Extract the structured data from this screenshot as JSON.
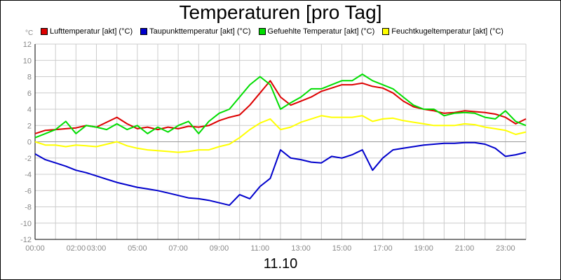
{
  "chart_data": {
    "type": "line",
    "title": "Temperaturen [pro Tag]",
    "date_label": "11.10",
    "y_unit": "°C",
    "ylim": [
      -12,
      12
    ],
    "y_ticks": [
      "12",
      "10",
      "8",
      "6",
      "4",
      "2",
      "0",
      "-2",
      "-4",
      "-6",
      "-8",
      "-10",
      "-12"
    ],
    "xlim": [
      0,
      24
    ],
    "x_ticks": [
      {
        "label": "00:00",
        "hour": 0
      },
      {
        "label": "02:00",
        "hour": 2
      },
      {
        "label": "03:00",
        "hour": 3
      },
      {
        "label": "05:00",
        "hour": 5
      },
      {
        "label": "07:00",
        "hour": 7
      },
      {
        "label": "09:00",
        "hour": 9
      },
      {
        "label": "11:00",
        "hour": 11
      },
      {
        "label": "13:00",
        "hour": 13
      },
      {
        "label": "15:00",
        "hour": 15
      },
      {
        "label": "17:00",
        "hour": 17
      },
      {
        "label": "19:00",
        "hour": 19
      },
      {
        "label": "21:00",
        "hour": 21
      },
      {
        "label": "23:00",
        "hour": 23
      }
    ],
    "grid": true,
    "legend_position": "top",
    "series": [
      {
        "name": "Lufttemperatur [akt] (°C)",
        "color": "#dd0000",
        "x": [
          0,
          0.5,
          1,
          1.5,
          2,
          2.5,
          3,
          3.5,
          4,
          4.5,
          5,
          5.5,
          6,
          6.5,
          7,
          7.5,
          8,
          8.5,
          9,
          9.5,
          10,
          10.5,
          11,
          11.5,
          12,
          12.5,
          13,
          13.5,
          14,
          14.5,
          15,
          15.5,
          16,
          16.5,
          17,
          17.5,
          18,
          18.5,
          19,
          19.5,
          20,
          20.5,
          21,
          21.5,
          22,
          22.5,
          23,
          23.5,
          24
        ],
        "values": [
          1.0,
          1.4,
          1.5,
          1.6,
          1.7,
          2.0,
          1.8,
          2.4,
          3.0,
          2.2,
          1.6,
          1.8,
          1.5,
          1.8,
          1.6,
          1.9,
          1.8,
          2.0,
          2.6,
          3.0,
          3.3,
          4.5,
          6.0,
          7.5,
          5.5,
          4.5,
          5.0,
          5.5,
          6.2,
          6.6,
          7.0,
          7.0,
          7.2,
          6.8,
          6.6,
          6.0,
          5.0,
          4.3,
          4.0,
          3.8,
          3.5,
          3.6,
          3.8,
          3.7,
          3.6,
          3.4,
          3.0,
          2.2,
          2.8
        ]
      },
      {
        "name": "Taupunkttemperatur [akt] (°C)",
        "color": "#0000cc",
        "x": [
          0,
          0.5,
          1,
          1.5,
          2,
          2.5,
          3,
          3.5,
          4,
          4.5,
          5,
          5.5,
          6,
          6.5,
          7,
          7.5,
          8,
          8.5,
          9,
          9.5,
          10,
          10.5,
          11,
          11.5,
          12,
          12.5,
          13,
          13.5,
          14,
          14.5,
          15,
          15.5,
          16,
          16.5,
          17,
          17.5,
          18,
          18.5,
          19,
          19.5,
          20,
          20.5,
          21,
          21.5,
          22,
          22.5,
          23,
          23.5,
          24
        ],
        "values": [
          -1.5,
          -2.2,
          -2.6,
          -3.0,
          -3.5,
          -3.8,
          -4.2,
          -4.6,
          -5.0,
          -5.3,
          -5.6,
          -5.8,
          -6.0,
          -6.3,
          -6.6,
          -6.9,
          -7.0,
          -7.2,
          -7.5,
          -7.8,
          -6.5,
          -7.0,
          -5.5,
          -4.5,
          -1.0,
          -2.0,
          -2.2,
          -2.5,
          -2.6,
          -1.8,
          -2.0,
          -1.6,
          -1.0,
          -3.5,
          -2.0,
          -1.0,
          -0.8,
          -0.6,
          -0.4,
          -0.3,
          -0.2,
          -0.2,
          -0.1,
          -0.1,
          -0.3,
          -0.8,
          -1.8,
          -1.6,
          -1.3
        ]
      },
      {
        "name": "Gefuehlte Temperatur [akt] (°C)",
        "color": "#00dd00",
        "x": [
          0,
          0.5,
          1,
          1.5,
          2,
          2.5,
          3,
          3.5,
          4,
          4.5,
          5,
          5.5,
          6,
          6.5,
          7,
          7.5,
          8,
          8.5,
          9,
          9.5,
          10,
          10.5,
          11,
          11.5,
          12,
          12.5,
          13,
          13.5,
          14,
          14.5,
          15,
          15.5,
          16,
          16.5,
          17,
          17.5,
          18,
          18.5,
          19,
          19.5,
          20,
          20.5,
          21,
          21.5,
          22,
          22.5,
          23,
          23.5,
          24
        ],
        "values": [
          0.5,
          1.0,
          1.5,
          2.5,
          1.0,
          2.0,
          1.8,
          1.5,
          2.2,
          1.5,
          2.0,
          1.0,
          1.8,
          1.2,
          2.0,
          2.5,
          1.0,
          2.5,
          3.5,
          4.0,
          5.5,
          7.0,
          8.0,
          7.0,
          4.0,
          4.8,
          5.5,
          6.5,
          6.5,
          7.0,
          7.5,
          7.5,
          8.3,
          7.5,
          7.0,
          6.5,
          5.5,
          4.5,
          4.0,
          4.0,
          3.2,
          3.5,
          3.6,
          3.5,
          3.0,
          2.8,
          3.8,
          2.5,
          2.0
        ]
      },
      {
        "name": "Feuchtkugeltemperatur [akt] (°C)",
        "color": "#ffff00",
        "x": [
          0,
          0.5,
          1,
          1.5,
          2,
          2.5,
          3,
          3.5,
          4,
          4.5,
          5,
          5.5,
          6,
          6.5,
          7,
          7.5,
          8,
          8.5,
          9,
          9.5,
          10,
          10.5,
          11,
          11.5,
          12,
          12.5,
          13,
          13.5,
          14,
          14.5,
          15,
          15.5,
          16,
          16.5,
          17,
          17.5,
          18,
          18.5,
          19,
          19.5,
          20,
          20.5,
          21,
          21.5,
          22,
          22.5,
          23,
          23.5,
          24
        ],
        "values": [
          0.0,
          -0.4,
          -0.4,
          -0.6,
          -0.4,
          -0.5,
          -0.6,
          -0.3,
          0.0,
          -0.5,
          -0.8,
          -1.0,
          -1.1,
          -1.2,
          -1.3,
          -1.2,
          -1.0,
          -1.0,
          -0.6,
          -0.3,
          0.5,
          1.5,
          2.3,
          2.8,
          1.5,
          1.8,
          2.4,
          2.8,
          3.2,
          3.0,
          3.0,
          3.0,
          3.2,
          2.5,
          2.8,
          2.9,
          2.6,
          2.4,
          2.2,
          2.0,
          2.0,
          2.0,
          2.2,
          2.1,
          1.8,
          1.6,
          1.4,
          0.9,
          1.2
        ]
      }
    ]
  }
}
